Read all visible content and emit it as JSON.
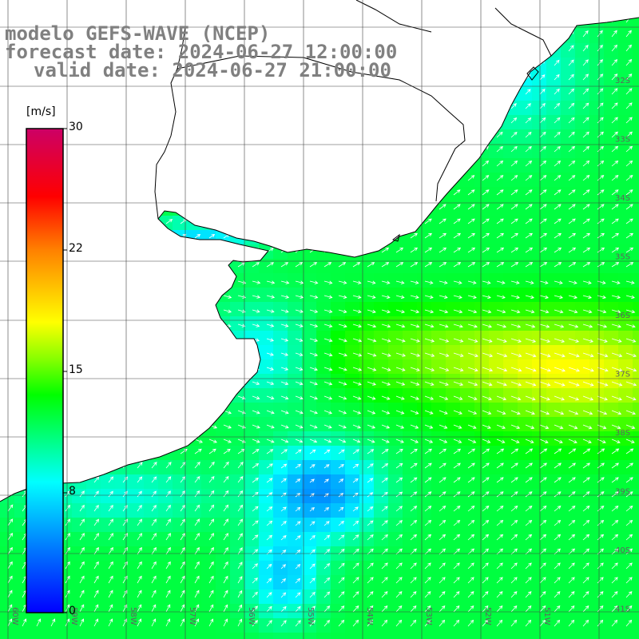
{
  "header": {
    "model_line": "modelo GEFS-WAVE (NCEP)",
    "forecast_line": "forecast date: 2024-06-27 12:00:00",
    "valid_line": "valid date: 2024-06-27 21:00:00"
  },
  "colorbar": {
    "unit": "[m/s]",
    "ticks": [
      "30",
      "22",
      "15",
      "8",
      "0"
    ],
    "colors": [
      "#0000ff",
      "#0080ff",
      "#00ffff",
      "#00ff00",
      "#ffff00",
      "#ff8000",
      "#ff0000",
      "#cc0066"
    ]
  },
  "map": {
    "lat_labels": [
      "32S",
      "33S",
      "34S",
      "35S",
      "36S",
      "37S",
      "38S",
      "39S",
      "40S",
      "41S"
    ],
    "lon_labels": [
      "60W",
      "59W",
      "58W",
      "57W",
      "56W",
      "55W",
      "54W",
      "53W",
      "52W",
      "51W"
    ],
    "ocean_field": "wind speed with direction arrows",
    "land_color": "#ffffff",
    "grid_color": "#404040"
  }
}
